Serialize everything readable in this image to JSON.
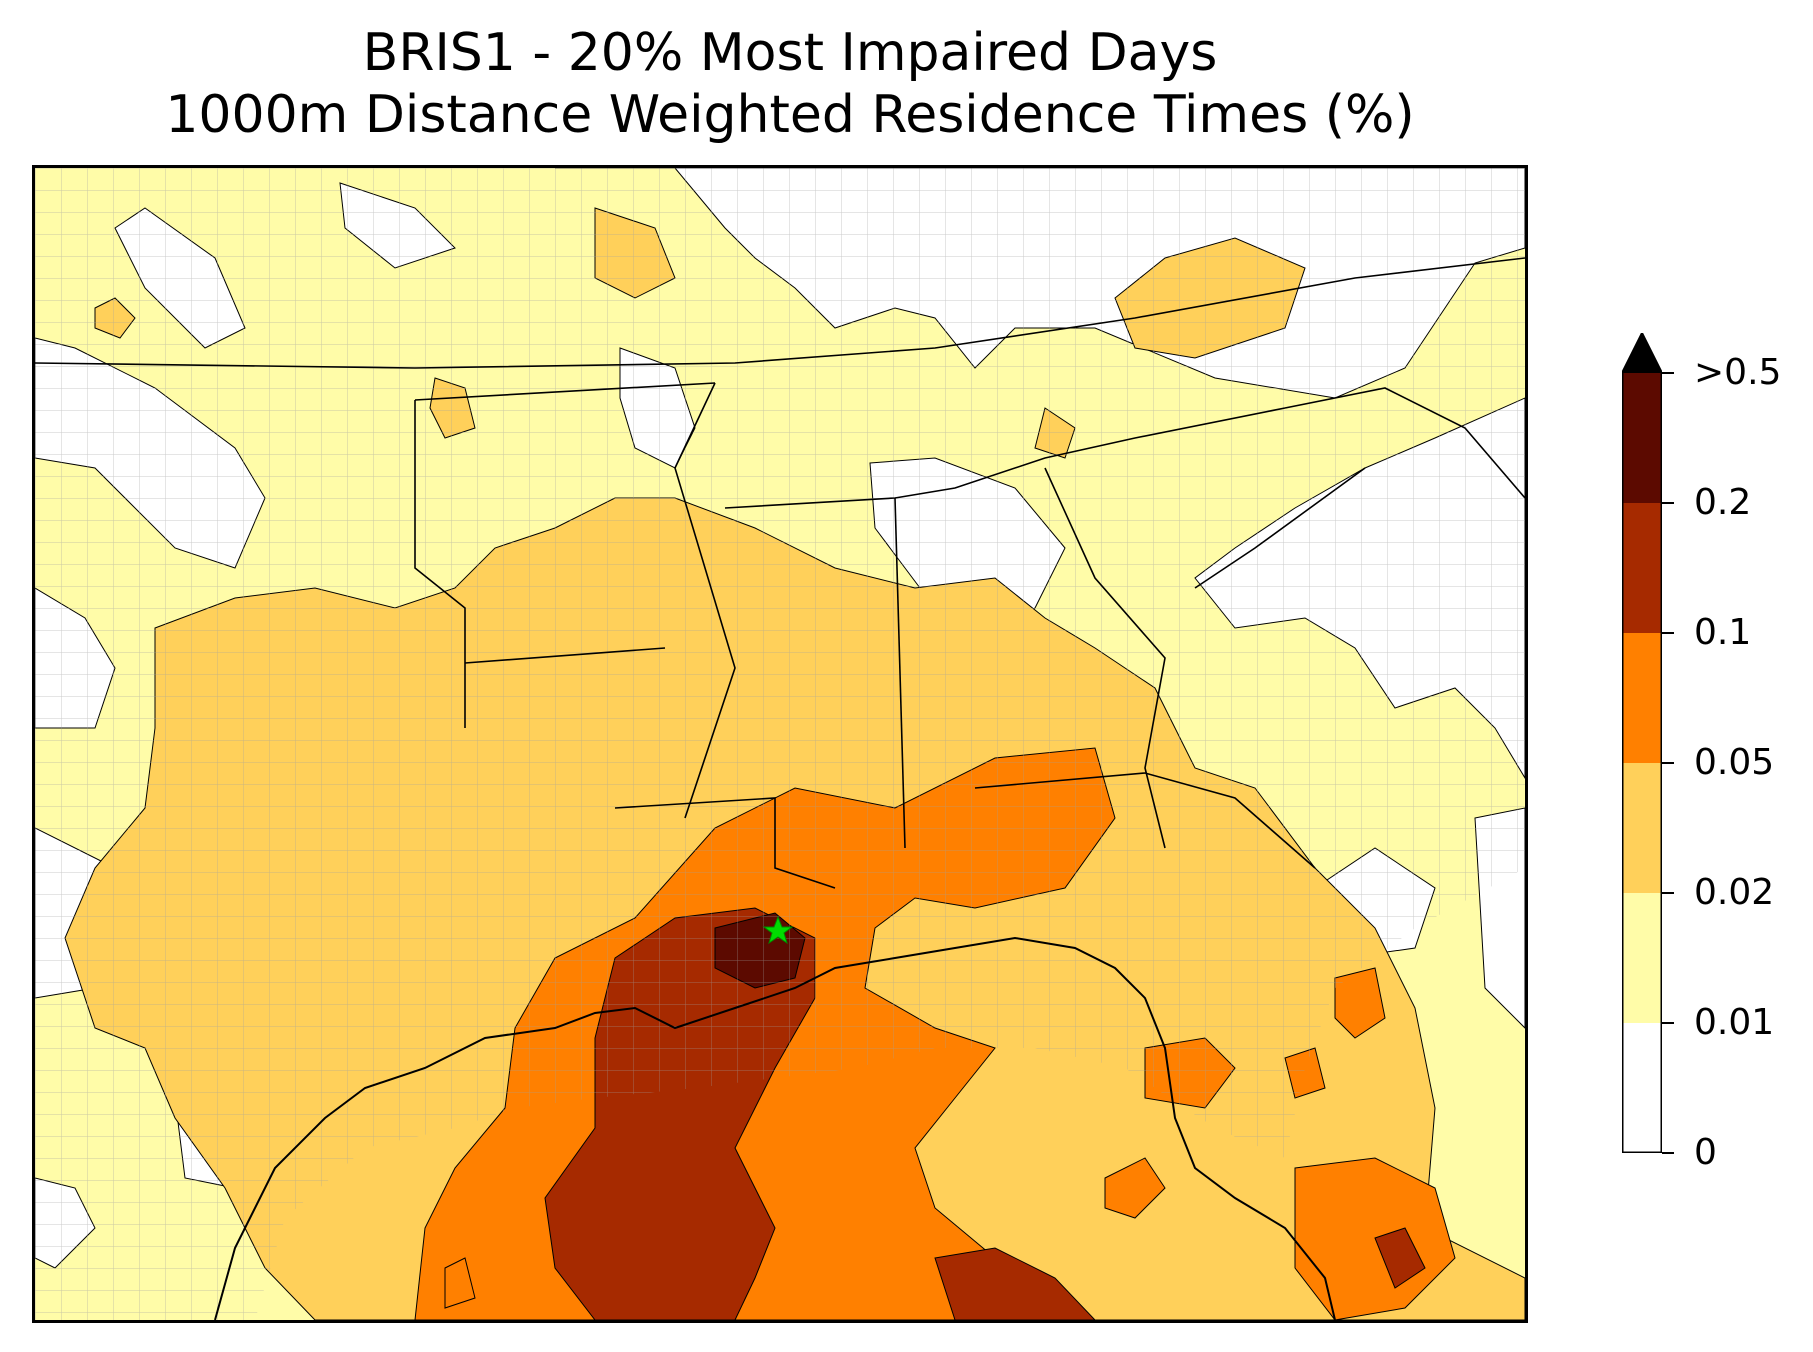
{
  "title": {
    "line1": "BRIS1 - 20% Most Impaired Days",
    "line2": "1000m Distance Weighted Residence Times (%)"
  },
  "map": {
    "site_marker": "green-star",
    "colors": {
      "bin_0": "#ffffff",
      "bin_1": "#fffca8",
      "bin_2": "#ffd05a",
      "bin_3": "#ff8000",
      "bin_4": "#a62a00",
      "bin_5": "#5c0a00",
      "over": "#000000",
      "site": "#00dd00"
    }
  },
  "colorbar": {
    "extend": "max",
    "labels": [
      "0",
      "0.01",
      "0.02",
      "0.05",
      "0.1",
      "0.2",
      ">0.5"
    ],
    "colors": [
      "#ffffff",
      "#fffca8",
      "#ffd05a",
      "#ff8000",
      "#a62a00",
      "#5c0a00",
      "#000000"
    ]
  }
}
